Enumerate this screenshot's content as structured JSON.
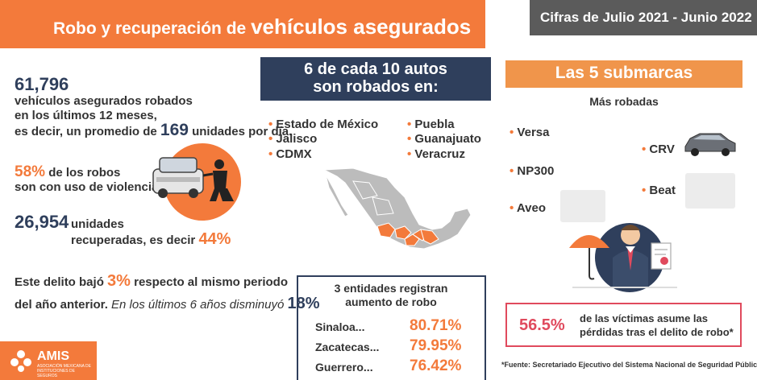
{
  "header": {
    "title_prefix": "Robo y recuperación de",
    "title_emphasis": "vehículos asegurados",
    "period": "Cifras de Julio 2021 - Junio 2022"
  },
  "robos": {
    "total": "61,796",
    "line1": "vehículos asegurados robados",
    "line2": "en los últimos 12 meses,",
    "line3_prefix": "es decir, un promedio de",
    "daily": "169",
    "line3_suffix": "unidades por día."
  },
  "violencia": {
    "pct": "58%",
    "line1": "de los robos",
    "line2": "son con uso de violencia."
  },
  "recuperados": {
    "total": "26,954",
    "line1": "unidades",
    "line2": "recuperadas, es decir",
    "pct": "44%"
  },
  "tendencia": {
    "prefix": "Este delito bajó",
    "pct": "3%",
    "suffix": "respecto al mismo periodo",
    "line2_prefix": "del año anterior.",
    "line2_italic": "En los últimos 6 años disminuyó",
    "pct6": "18%"
  },
  "estados": {
    "title_line1": "6 de cada 10 autos",
    "title_line2": "son robados en:",
    "col1": [
      "Estado de México",
      "Jalisco",
      "CDMX"
    ],
    "col2": [
      "Puebla",
      "Guanajuato",
      "Veracruz"
    ]
  },
  "aumento": {
    "title_line1": "3 entidades registran",
    "title_line2": "aumento de robo",
    "rows": [
      {
        "name": "Sinaloa...",
        "pct": "80.71%"
      },
      {
        "name": "Zacatecas...",
        "pct": "79.95%"
      },
      {
        "name": "Guerrero...",
        "pct": "76.42%"
      }
    ]
  },
  "submarcas": {
    "title": "Las 5 submarcas",
    "subtitle": "Más robadas",
    "items": [
      "Versa",
      "CRV",
      "NP300",
      "Beat",
      "Aveo"
    ]
  },
  "victimas": {
    "pct": "56.5%",
    "line1": "de las víctimas asume las",
    "line2": "pérdidas tras el delito de robo*"
  },
  "fuente": "*Fuente: Secretariado Ejecutivo del Sistema Nacional de Seguridad Pública",
  "logo": {
    "name": "AMIS",
    "tagline": "ASOCIACIÓN MEXICANA DE INSTITUCIONES DE SEGUROS"
  },
  "colors": {
    "orange": "#f37a3b",
    "navy": "#2f3f5c",
    "gray": "#5b5b5b",
    "red": "#e04a5d"
  }
}
